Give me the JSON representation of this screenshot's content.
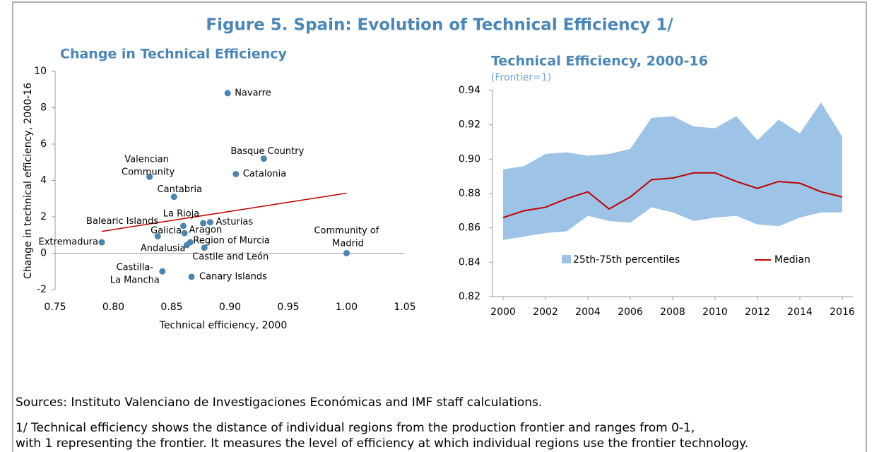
{
  "title": "Figure 5. Spain: Evolution of Technical Efficiency 1/",
  "chart_data": [
    {
      "type": "scatter",
      "title": "Change in Technical Efficiency",
      "x_label": "Technical efficiency, 2000",
      "y_label": "Change in technical efficiency, 2000-16",
      "labels": [
        "Navarre",
        "Basque Country",
        "Catalonia",
        "Valencian Community",
        "Cantabria",
        "La Rioja",
        "Asturias",
        "Aragon",
        "Balearic Islands",
        "Galicia",
        "Region of Murcia",
        "Andalusia",
        "Castile and León",
        "Extremadura",
        "Castilla-La Mancha",
        "Canary Islands",
        "Community of Madrid"
      ],
      "x": [
        0.898,
        0.929,
        0.905,
        0.831,
        0.852,
        0.86,
        0.883,
        0.877,
        0.838,
        0.861,
        0.866,
        0.863,
        0.878,
        0.79,
        0.842,
        0.867,
        1.0
      ],
      "values": [
        8.8,
        5.2,
        4.35,
        4.2,
        3.1,
        1.5,
        1.7,
        1.65,
        0.93,
        1.1,
        0.6,
        0.45,
        0.3,
        0.6,
        -1.0,
        -1.3,
        0.0
      ],
      "color": "#4a86b0",
      "trendline": {
        "x": [
          0.79,
          1.0
        ],
        "values": [
          1.2,
          3.3
        ],
        "color": "#c00000"
      },
      "xlim": [
        0.75,
        1.05
      ],
      "xticks": [
        0.75,
        {
          "value": 0.8,
          "label": "0.80"
        },
        0.85,
        {
          "value": 0.9,
          "label": "0.90"
        },
        0.95,
        {
          "value": 1,
          "label": "1.00"
        },
        1.05
      ],
      "ylim": [
        -2,
        10
      ],
      "yticks": [
        -2,
        0,
        2,
        4,
        6,
        8,
        10
      ]
    },
    {
      "type": "line",
      "title": "Technical Efficiency, 2000-16",
      "subtitle": "(Frontier=1)",
      "x": [
        2000,
        2001,
        2002,
        2003,
        2004,
        2005,
        2006,
        2007,
        2008,
        2009,
        2010,
        2011,
        2012,
        2013,
        2014,
        2015,
        2016
      ],
      "series": [
        {
          "name": "25th-75th percentiles",
          "color": "#9dc3e6",
          "lower": [
            0.853,
            0.855,
            0.857,
            0.858,
            0.867,
            0.864,
            0.863,
            0.872,
            0.869,
            0.864,
            0.866,
            0.867,
            0.862,
            0.861,
            0.866,
            0.869,
            0.869
          ],
          "upper": [
            0.894,
            0.896,
            0.903,
            0.904,
            0.902,
            0.903,
            0.906,
            0.924,
            0.925,
            0.919,
            0.918,
            0.925,
            0.911,
            0.923,
            0.915,
            0.933,
            0.913
          ]
        },
        {
          "name": "Median",
          "color": "#c00000",
          "values": [
            0.866,
            0.87,
            0.872,
            0.877,
            0.881,
            0.871,
            0.878,
            0.888,
            0.889,
            0.892,
            0.892,
            0.887,
            0.883,
            0.887,
            0.886,
            0.881,
            0.878
          ]
        }
      ],
      "xlim": [
        1999.5,
        2016.5
      ],
      "xticks": [
        2000,
        2002,
        2004,
        2006,
        2008,
        2010,
        2012,
        2014,
        2016
      ],
      "ylim": [
        0.82,
        0.94
      ],
      "yticks": [
        0.82,
        0.84,
        0.86,
        0.88,
        {
          "value": 0.9,
          "label": "0.90"
        },
        0.92,
        0.94
      ]
    }
  ],
  "sources": "Sources: Instituto Valenciano de Investigaciones Económicas and IMF staff calculations.",
  "notes": [
    "1/ Technical efficiency shows the distance of individual regions from the production frontier and ranges from 0-1,",
    "with 1 representing the frontier. It measures the level of efficiency at which individual regions use the frontier technology."
  ]
}
